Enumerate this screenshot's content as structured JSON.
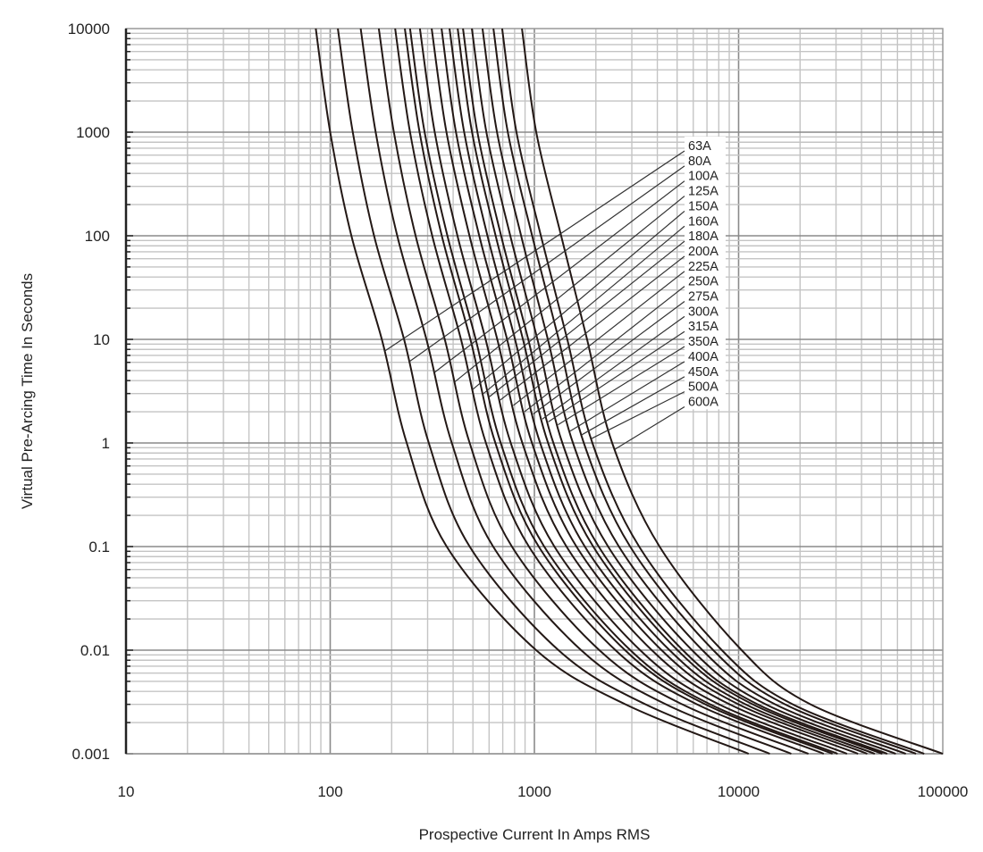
{
  "chart_data": {
    "type": "line",
    "xscale": "log",
    "yscale": "log",
    "xlabel": "Prospective Current In Amps RMS",
    "ylabel": "Virtual Pre-Arcing Time In Seconds",
    "xlim": [
      10,
      100000
    ],
    "ylim": [
      0.001,
      10000
    ],
    "grid": true,
    "x_ticks": [
      "10",
      "100",
      "1000",
      "10000",
      "100000"
    ],
    "y_ticks": [
      "10000",
      "1000",
      "100",
      "10",
      "1",
      "0.1",
      "0.01",
      "0.001"
    ],
    "line_color": "#231815",
    "time_points": [
      10000,
      1000,
      100,
      10,
      1,
      0.1,
      0.01,
      0.003,
      0.001
    ],
    "series": [
      {
        "name": "63A",
        "current": [
          85,
          100,
          127,
          179,
          237,
          372,
          1020,
          2790,
          11200
        ],
        "label_time": 7.7
      },
      {
        "name": "80A",
        "current": [
          109,
          129,
          164,
          230,
          304,
          482,
          1312,
          3499,
          14220
        ],
        "label_time": 6.1
      },
      {
        "name": "100A",
        "current": [
          141,
          167,
          213,
          296,
          394,
          628,
          1694,
          4406,
          18110
        ],
        "label_time": 4.8
      },
      {
        "name": "125A",
        "current": [
          173,
          205,
          262,
          364,
          482,
          776,
          2080,
          5297,
          21980
        ],
        "label_time": 3.9
      },
      {
        "name": "150A",
        "current": [
          208,
          246,
          316,
          437,
          579,
          940,
          2495,
          6252,
          26120
        ],
        "label_time": 3.3
      },
      {
        "name": "160A",
        "current": [
          232,
          274,
          352,
          486,
          644,
          1050,
          2780,
          6871,
          28840
        ],
        "label_time": 3.0
      },
      {
        "name": "180A",
        "current": [
          246,
          290,
          375,
          516,
          684,
          1117,
          2951,
          7261,
          30550
        ],
        "label_time": 2.8
      },
      {
        "name": "200A",
        "current": [
          275,
          325,
          420,
          577,
          766,
          1253,
          3296,
          8017,
          33960
        ],
        "label_time": 2.6
      },
      {
        "name": "225A",
        "current": [
          314,
          371,
          481,
          658,
          873,
          1436,
          3758,
          9036,
          38460
        ],
        "label_time": 2.3
      },
      {
        "name": "250A",
        "current": [
          351,
          413,
          537,
          735,
          973,
          1607,
          4198,
          9977,
          42660
        ],
        "label_time": 2.0
      },
      {
        "name": "275A",
        "current": [
          384,
          453,
          589,
          804,
          1067,
          1766,
          4592,
          10810,
          46450
        ],
        "label_time": 1.9
      },
      {
        "name": "300A",
        "current": [
          421,
          495,
          646,
          879,
          1167,
          1941,
          5023,
          11720,
          50580
        ],
        "label_time": 1.7
      },
      {
        "name": "315A",
        "current": [
          447,
          526,
          687,
          933,
          1239,
          2065,
          5333,
          12390,
          53460
        ],
        "label_time": 1.6
      },
      {
        "name": "350A",
        "current": [
          494,
          582,
          762,
          1035,
          1371,
          2296,
          5916,
          13580,
          58880
        ],
        "label_time": 1.5
      },
      {
        "name": "400A",
        "current": [
          557,
          656,
          861,
          1164,
          1545,
          2594,
          6653,
          15100,
          65920
        ],
        "label_time": 1.3
      },
      {
        "name": "450A",
        "current": [
          630,
          741,
          975,
          1315,
          1746,
          2944,
          7516,
          16870,
          73960
        ],
        "label_time": 1.2
      },
      {
        "name": "500A",
        "current": [
          695,
          817,
          1076,
          1449,
          1923,
          3258,
          8279,
          18410,
          81100
        ],
        "label_time": 1.1
      },
      {
        "name": "600A",
        "current": [
          869,
          1021,
          1352,
          1811,
          2404,
          4102,
          10350,
          22490,
          100000
        ],
        "label_time": 0.87
      }
    ]
  }
}
